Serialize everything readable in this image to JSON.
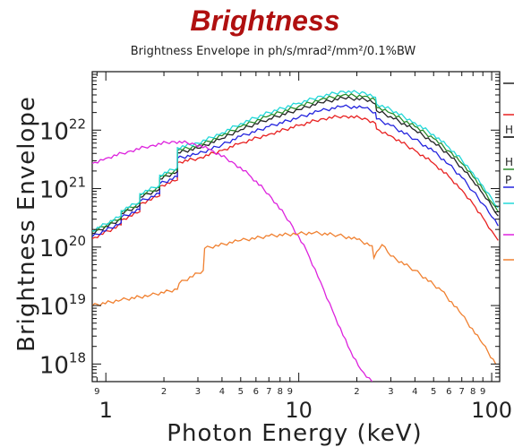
{
  "chart_data": {
    "type": "line",
    "title": "Brightness",
    "subtitle": "Brightness Envelope in ph/s/mrad²/mm²/0.1%BW",
    "xlabel": "Photon Energy (keV)",
    "ylabel": "Brightness Envelope",
    "x_scale": "log",
    "y_scale": "log",
    "xlim": [
      0.85,
      110
    ],
    "ylim": [
      5e+17,
      1e+23
    ],
    "grid": false,
    "legend_position": "right",
    "x_major_ticks": [
      {
        "value": 1,
        "label": "1"
      },
      {
        "value": 10,
        "label": "10"
      },
      {
        "value": 100,
        "label": "100"
      }
    ],
    "x_minor_ticks": [
      {
        "value": 0.9,
        "label": "9"
      },
      {
        "value": 2,
        "label": "2"
      },
      {
        "value": 3,
        "label": "3"
      },
      {
        "value": 4,
        "label": "4"
      },
      {
        "value": 5,
        "label": "5"
      },
      {
        "value": 6,
        "label": "6"
      },
      {
        "value": 7,
        "label": "7"
      },
      {
        "value": 8,
        "label": "8"
      },
      {
        "value": 9,
        "label": "9"
      },
      {
        "value": 20,
        "label": "2"
      },
      {
        "value": 30,
        "label": "3"
      },
      {
        "value": 40,
        "label": "4"
      },
      {
        "value": 50,
        "label": "5"
      },
      {
        "value": 60,
        "label": "6"
      },
      {
        "value": 70,
        "label": "7"
      },
      {
        "value": 80,
        "label": "8"
      },
      {
        "value": 90,
        "label": "9"
      }
    ],
    "y_major_ticks": [
      {
        "value": 1e+18,
        "base": "10",
        "exp": "18"
      },
      {
        "value": 1e+19,
        "base": "10",
        "exp": "19"
      },
      {
        "value": 1e+20,
        "base": "10",
        "exp": "20"
      },
      {
        "value": 1e+21,
        "base": "10",
        "exp": "21"
      },
      {
        "value": 1e+22,
        "base": "10",
        "exp": "22"
      }
    ],
    "legend_entries": [
      {
        "label": "",
        "color": "#222222"
      },
      {
        "label": "",
        "color": "#e82020"
      },
      {
        "label": "H",
        "color": "#000000"
      },
      {
        "label": "H",
        "color": "#2a8a2a"
      },
      {
        "label": "P",
        "color": "#2222dd"
      },
      {
        "label": "",
        "color": "#22d8d8"
      },
      {
        "label": "",
        "color": "#dd22dd"
      },
      {
        "label": "",
        "color": "#f08030"
      }
    ],
    "series": [
      {
        "color": "#e82020",
        "x": [
          0.85,
          1.2,
          1.2,
          1.5,
          1.5,
          1.9,
          1.9,
          2.35,
          2.35,
          3.0,
          4.0,
          5.0,
          7.0,
          10,
          13,
          17,
          22,
          25,
          25.3,
          30,
          40,
          50,
          60,
          70,
          80,
          90,
          100,
          108
        ],
        "y": [
          1.4e+20,
          2.4e+20,
          2.9e+20,
          4e+20,
          5.5e+20,
          7.5e+20,
          1.1e+21,
          1.4e+21,
          2.8e+21,
          3.3e+21,
          4.5e+21,
          6e+21,
          8.5e+21,
          1.2e+22,
          1.55e+22,
          1.75e+22,
          1.6e+22,
          1.3e+22,
          1.05e+22,
          8e+21,
          4.5e+21,
          2.7e+21,
          1.6e+21,
          9.5e+20,
          5.5e+20,
          3.2e+20,
          1.9e+20,
          1.3e+20
        ]
      },
      {
        "color": "#2222dd",
        "x": [
          0.85,
          1.2,
          1.2,
          1.5,
          1.5,
          1.9,
          1.9,
          2.35,
          2.35,
          3.0,
          4.0,
          5.0,
          7.0,
          10,
          13,
          17,
          22,
          25,
          25.3,
          30,
          40,
          50,
          60,
          70,
          80,
          90,
          100,
          108
        ],
        "y": [
          1.5e+20,
          2.6e+20,
          3.2e+20,
          4.4e+20,
          6e+20,
          8.2e+20,
          1.2e+21,
          1.6e+21,
          3.3e+21,
          3.9e+21,
          5.6e+21,
          7.8e+21,
          1.15e+22,
          1.65e+22,
          2.15e+22,
          2.55e+22,
          2.4e+22,
          2e+22,
          1.55e+22,
          1.2e+22,
          7e+21,
          4.3e+21,
          2.6e+21,
          1.55e+21,
          9e+20,
          5.5e+20,
          3.3e+20,
          2.3e+20
        ]
      },
      {
        "color": "#222222",
        "x": [
          0.85,
          1.2,
          1.2,
          1.5,
          1.5,
          1.9,
          1.9,
          2.35,
          2.35,
          3.0,
          4.0,
          5.0,
          7.0,
          10,
          13,
          17,
          22,
          25,
          25.3,
          30,
          40,
          50,
          60,
          70,
          80,
          90,
          100,
          108
        ],
        "y": [
          1.7e+20,
          3e+20,
          3.7e+20,
          5.2e+20,
          7.1e+20,
          9.8e+20,
          1.45e+21,
          1.95e+21,
          4.1e+21,
          4.9e+21,
          7.2e+21,
          1.02e+22,
          1.55e+22,
          2.25e+22,
          2.95e+22,
          3.55e+22,
          3.35e+22,
          2.8e+22,
          2.15e+22,
          1.7e+22,
          1e+22,
          6.2e+21,
          3.8e+21,
          2.3e+21,
          1.35e+21,
          8.2e+20,
          5e+20,
          3.4e+20
        ]
      },
      {
        "color": "#2a8a2a",
        "x": [
          0.85,
          1.2,
          1.2,
          1.5,
          1.5,
          1.9,
          1.9,
          2.35,
          2.35,
          3.0,
          4.0,
          5.0,
          7.0,
          10,
          13,
          17,
          22,
          25,
          25.3,
          30,
          40,
          50,
          60,
          70,
          80,
          90,
          100,
          108
        ],
        "y": [
          1.8e+20,
          3.2e+20,
          3.9e+20,
          5.6e+20,
          7.6e+20,
          1.05e+21,
          1.55e+21,
          2.1e+21,
          4.5e+21,
          5.4e+21,
          8e+21,
          1.15e+22,
          1.75e+22,
          2.55e+22,
          3.35e+22,
          4e+22,
          3.8e+22,
          3.2e+22,
          2.45e+22,
          1.95e+22,
          1.15e+22,
          7.2e+21,
          4.4e+21,
          2.7e+21,
          1.6e+21,
          9.6e+20,
          5.8e+20,
          4e+20
        ]
      },
      {
        "color": "#22d8d8",
        "x": [
          0.85,
          1.2,
          1.2,
          1.5,
          1.5,
          1.9,
          1.9,
          2.35,
          2.35,
          3.0,
          4.0,
          5.0,
          7.0,
          10,
          13,
          17,
          22,
          25,
          25.3,
          30,
          40,
          50,
          60,
          70,
          80,
          90,
          100,
          108
        ],
        "y": [
          1.9e+20,
          3.4e+20,
          4.2e+20,
          6e+20,
          8.2e+20,
          1.15e+21,
          1.7e+21,
          2.3e+21,
          5e+21,
          6e+21,
          9e+21,
          1.3e+22,
          2e+22,
          2.9e+22,
          3.8e+22,
          4.6e+22,
          4.35e+22,
          3.65e+22,
          2.8e+22,
          2.25e+22,
          1.33e+22,
          8.4e+21,
          5.1e+21,
          3.1e+21,
          1.85e+21,
          1.12e+21,
          6.8e+20,
          4.7e+20
        ]
      },
      {
        "color": "#dd22dd",
        "x": [
          0.85,
          1.0,
          1.3,
          1.7,
          2.2,
          2.8,
          3.5,
          4.5,
          5.5,
          7.0,
          9.0,
          11,
          13,
          15,
          18,
          21,
          24
        ],
        "y": [
          2.7e+21,
          3.3e+21,
          4.3e+21,
          5.4e+21,
          6.4e+21,
          6e+21,
          4.6e+21,
          2.9e+21,
          1.75e+21,
          8e+20,
          2.7e+20,
          8.5e+19,
          2.5e+19,
          8e+18,
          2e+18,
          8e+17,
          5e+17
        ]
      },
      {
        "color": "#f08030",
        "x": [
          0.85,
          1.2,
          1.7,
          2.35,
          2.4,
          3.2,
          3.25,
          5.0,
          7.0,
          10,
          12,
          16,
          20,
          24,
          24.5,
          27,
          30,
          40,
          55,
          70,
          90,
          105
        ],
        "y": [
          1e+19,
          1.25e+19,
          1.5e+19,
          1.9e+19,
          2.4e+19,
          4e+19,
          9.5e+19,
          1.3e+20,
          1.55e+20,
          1.7e+20,
          1.75e+20,
          1.6e+20,
          1.35e+20,
          1.05e+20,
          6.5e+19,
          1.1e+20,
          7e+19,
          4e+19,
          1.8e+19,
          7e+18,
          2.2e+18,
          1e+18
        ]
      }
    ]
  }
}
